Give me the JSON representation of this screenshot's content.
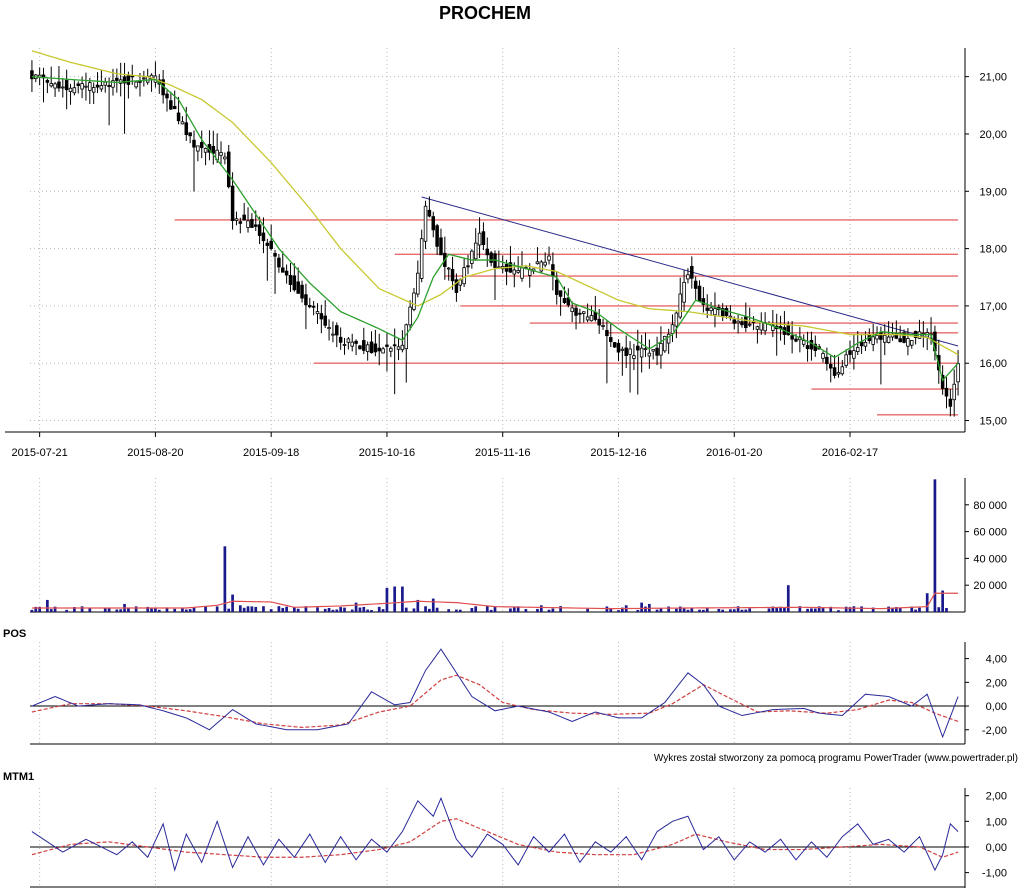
{
  "title": "PROCHEM",
  "footer": "Wykres został stworzony za pomocą programu PowerTrader (www.powertrader.pl)",
  "colors": {
    "grid": "#b9b9b9",
    "candle": "#000000",
    "sma_short": "#2ca02c",
    "sma_long": "#c8c830",
    "resistance": "#e86a6a",
    "trendline": "#2a2a8a",
    "volume": "#1a1a8c",
    "volume_avg": "#e05050",
    "indicator": "#2a2a9a",
    "signal": "#d04040"
  },
  "chart_data": [
    {
      "type": "candlestick",
      "name": "price",
      "title": "PROCHEM",
      "ylim": [
        14.8,
        21.5
      ],
      "yticks": [
        "21,00",
        "20,00",
        "19,00",
        "18,00",
        "17,00",
        "16,00",
        "15,00"
      ],
      "ytick_values": [
        21,
        20,
        19,
        18,
        17,
        16,
        15
      ],
      "xticks": [
        "2015-07-21",
        "2015-08-20",
        "2015-09-18",
        "2015-10-16",
        "2015-11-16",
        "2015-12-16",
        "2016-01-20",
        "2016-02-17"
      ],
      "xtick_index": [
        2,
        32,
        62,
        92,
        122,
        152,
        182,
        212
      ],
      "n_bars": 241,
      "anchors_close": [
        [
          0,
          21.0
        ],
        [
          10,
          20.8
        ],
        [
          22,
          20.9
        ],
        [
          32,
          21.0
        ],
        [
          36,
          20.5
        ],
        [
          42,
          19.8
        ],
        [
          50,
          19.6
        ],
        [
          52,
          18.5
        ],
        [
          58,
          18.4
        ],
        [
          66,
          17.5
        ],
        [
          72,
          17.0
        ],
        [
          80,
          16.4
        ],
        [
          90,
          16.2
        ],
        [
          96,
          16.3
        ],
        [
          100,
          17.6
        ],
        [
          102,
          18.7
        ],
        [
          106,
          17.9
        ],
        [
          110,
          17.3
        ],
        [
          116,
          18.2
        ],
        [
          120,
          17.7
        ],
        [
          126,
          17.6
        ],
        [
          134,
          17.8
        ],
        [
          136,
          17.2
        ],
        [
          140,
          16.9
        ],
        [
          146,
          16.8
        ],
        [
          152,
          16.2
        ],
        [
          162,
          16.2
        ],
        [
          166,
          16.7
        ],
        [
          170,
          17.6
        ],
        [
          174,
          17.0
        ],
        [
          178,
          16.9
        ],
        [
          184,
          16.7
        ],
        [
          194,
          16.6
        ],
        [
          204,
          16.2
        ],
        [
          208,
          15.8
        ],
        [
          212,
          16.2
        ],
        [
          218,
          16.5
        ],
        [
          226,
          16.4
        ],
        [
          233,
          16.55
        ],
        [
          236,
          15.5
        ],
        [
          238,
          15.3
        ],
        [
          240,
          16.0
        ]
      ],
      "sma_short_anchors": [
        [
          0,
          21.0
        ],
        [
          10,
          20.95
        ],
        [
          22,
          20.9
        ],
        [
          32,
          20.95
        ],
        [
          38,
          20.6
        ],
        [
          44,
          19.9
        ],
        [
          52,
          19.2
        ],
        [
          58,
          18.6
        ],
        [
          64,
          18.0
        ],
        [
          72,
          17.4
        ],
        [
          80,
          16.9
        ],
        [
          90,
          16.6
        ],
        [
          96,
          16.4
        ],
        [
          100,
          16.8
        ],
        [
          104,
          17.5
        ],
        [
          108,
          17.9
        ],
        [
          114,
          17.8
        ],
        [
          120,
          17.8
        ],
        [
          128,
          17.65
        ],
        [
          136,
          17.5
        ],
        [
          140,
          17.05
        ],
        [
          146,
          16.9
        ],
        [
          152,
          16.6
        ],
        [
          160,
          16.25
        ],
        [
          166,
          16.5
        ],
        [
          172,
          17.1
        ],
        [
          178,
          16.95
        ],
        [
          186,
          16.8
        ],
        [
          194,
          16.6
        ],
        [
          202,
          16.35
        ],
        [
          208,
          16.1
        ],
        [
          214,
          16.35
        ],
        [
          220,
          16.55
        ],
        [
          228,
          16.5
        ],
        [
          233,
          16.5
        ],
        [
          236,
          15.7
        ],
        [
          240,
          16.0
        ]
      ],
      "sma_long_anchors": [
        [
          0,
          21.45
        ],
        [
          10,
          21.25
        ],
        [
          22,
          21.05
        ],
        [
          30,
          21.0
        ],
        [
          36,
          20.85
        ],
        [
          44,
          20.6
        ],
        [
          52,
          20.2
        ],
        [
          62,
          19.5
        ],
        [
          72,
          18.7
        ],
        [
          80,
          18.0
        ],
        [
          90,
          17.3
        ],
        [
          100,
          17.0
        ],
        [
          106,
          17.2
        ],
        [
          112,
          17.5
        ],
        [
          120,
          17.65
        ],
        [
          128,
          17.7
        ],
        [
          136,
          17.6
        ],
        [
          144,
          17.35
        ],
        [
          152,
          17.1
        ],
        [
          160,
          16.95
        ],
        [
          170,
          16.9
        ],
        [
          180,
          16.8
        ],
        [
          190,
          16.7
        ],
        [
          200,
          16.65
        ],
        [
          212,
          16.5
        ],
        [
          224,
          16.5
        ],
        [
          232,
          16.45
        ],
        [
          236,
          16.3
        ],
        [
          240,
          16.15
        ]
      ],
      "resistance_levels": [
        {
          "value": 18.5,
          "from": 37,
          "to": 240
        },
        {
          "value": 17.9,
          "from": 94,
          "to": 240
        },
        {
          "value": 17.52,
          "from": 107,
          "to": 240
        },
        {
          "value": 17.0,
          "from": 111,
          "to": 240
        },
        {
          "value": 16.7,
          "from": 129,
          "to": 240
        },
        {
          "value": 16.53,
          "from": 149,
          "to": 240
        },
        {
          "value": 16.0,
          "from": 73,
          "to": 240
        },
        {
          "value": 15.55,
          "from": 202,
          "to": 240
        },
        {
          "value": 15.1,
          "from": 219,
          "to": 240
        }
      ],
      "trendline": {
        "from": [
          101,
          18.9
        ],
        "to": [
          240,
          16.3
        ]
      }
    },
    {
      "type": "bar",
      "name": "volume",
      "ylim": [
        0,
        100000
      ],
      "yticks": [
        "80 000",
        "60 000",
        "40 000",
        "20 000"
      ],
      "ytick_values": [
        80000,
        60000,
        40000,
        20000
      ],
      "n_bars": 241,
      "spikes": [
        [
          4,
          9000
        ],
        [
          24,
          6000
        ],
        [
          50,
          49000
        ],
        [
          52,
          13000
        ],
        [
          54,
          5000
        ],
        [
          84,
          7000
        ],
        [
          92,
          18000
        ],
        [
          94,
          19000
        ],
        [
          96,
          19000
        ],
        [
          100,
          9000
        ],
        [
          104,
          10000
        ],
        [
          132,
          5000
        ],
        [
          154,
          5000
        ],
        [
          158,
          7000
        ],
        [
          160,
          6000
        ],
        [
          196,
          20000
        ],
        [
          232,
          14000
        ],
        [
          234,
          99000
        ],
        [
          236,
          16000
        ]
      ],
      "base_volume": 2200,
      "avg_anchors": [
        [
          0,
          3000
        ],
        [
          40,
          3000
        ],
        [
          48,
          5000
        ],
        [
          52,
          8000
        ],
        [
          62,
          7500
        ],
        [
          68,
          3500
        ],
        [
          80,
          4500
        ],
        [
          92,
          6500
        ],
        [
          100,
          8000
        ],
        [
          110,
          7000
        ],
        [
          120,
          4000
        ],
        [
          150,
          2500
        ],
        [
          170,
          3000
        ],
        [
          200,
          3500
        ],
        [
          220,
          2500
        ],
        [
          232,
          4000
        ],
        [
          234,
          14000
        ],
        [
          240,
          14000
        ]
      ]
    },
    {
      "type": "line",
      "name": "POS",
      "ylabel": "POS",
      "ylim": [
        -3.2,
        5.4
      ],
      "yticks": [
        "4,00",
        "2,00",
        "0,00",
        "-2,00"
      ],
      "ytick_values": [
        4,
        2,
        0,
        -2
      ],
      "n_bars": 241,
      "series_anchors": [
        [
          0,
          0.0
        ],
        [
          6,
          0.8
        ],
        [
          12,
          0.0
        ],
        [
          20,
          0.2
        ],
        [
          28,
          0.1
        ],
        [
          34,
          -0.4
        ],
        [
          40,
          -1.0
        ],
        [
          46,
          -2.0
        ],
        [
          52,
          -0.3
        ],
        [
          58,
          -1.5
        ],
        [
          66,
          -2.0
        ],
        [
          74,
          -2.0
        ],
        [
          82,
          -1.5
        ],
        [
          88,
          1.2
        ],
        [
          94,
          0.1
        ],
        [
          98,
          0.3
        ],
        [
          102,
          3.0
        ],
        [
          106,
          4.8
        ],
        [
          110,
          2.8
        ],
        [
          114,
          0.8
        ],
        [
          120,
          -0.4
        ],
        [
          126,
          0.0
        ],
        [
          134,
          -0.5
        ],
        [
          140,
          -1.3
        ],
        [
          146,
          -0.5
        ],
        [
          152,
          -1.0
        ],
        [
          158,
          -1.0
        ],
        [
          164,
          0.3
        ],
        [
          170,
          2.8
        ],
        [
          174,
          1.8
        ],
        [
          178,
          0.0
        ],
        [
          184,
          -0.8
        ],
        [
          192,
          -0.3
        ],
        [
          200,
          -0.2
        ],
        [
          204,
          -0.6
        ],
        [
          210,
          -0.8
        ],
        [
          216,
          1.0
        ],
        [
          222,
          0.8
        ],
        [
          228,
          0.0
        ],
        [
          232,
          1.0
        ],
        [
          236,
          -2.6
        ],
        [
          240,
          0.8
        ]
      ],
      "signal_anchors": [
        [
          0,
          -0.5
        ],
        [
          10,
          0.2
        ],
        [
          20,
          0.2
        ],
        [
          30,
          0.0
        ],
        [
          40,
          -0.4
        ],
        [
          50,
          -0.9
        ],
        [
          60,
          -1.5
        ],
        [
          70,
          -1.8
        ],
        [
          80,
          -1.6
        ],
        [
          90,
          -0.5
        ],
        [
          98,
          0.0
        ],
        [
          106,
          2.2
        ],
        [
          110,
          2.6
        ],
        [
          116,
          1.8
        ],
        [
          122,
          0.3
        ],
        [
          130,
          -0.3
        ],
        [
          140,
          -0.6
        ],
        [
          150,
          -0.7
        ],
        [
          160,
          -0.6
        ],
        [
          166,
          0.2
        ],
        [
          174,
          1.8
        ],
        [
          180,
          0.8
        ],
        [
          188,
          -0.5
        ],
        [
          196,
          -0.4
        ],
        [
          206,
          -0.6
        ],
        [
          214,
          -0.3
        ],
        [
          222,
          0.5
        ],
        [
          228,
          0.3
        ],
        [
          234,
          -0.6
        ],
        [
          240,
          -1.3
        ]
      ]
    },
    {
      "type": "line",
      "name": "MTM1",
      "ylabel": "MTM1",
      "ylim": [
        -1.6,
        2.3
      ],
      "yticks": [
        "2,00",
        "1,00",
        "0,00",
        "-1,00"
      ],
      "ytick_values": [
        2,
        1,
        0,
        -1
      ],
      "n_bars": 241,
      "series_anchors": [
        [
          0,
          0.6
        ],
        [
          2,
          0.4
        ],
        [
          4,
          0.2
        ],
        [
          8,
          -0.2
        ],
        [
          14,
          0.3
        ],
        [
          18,
          0.0
        ],
        [
          22,
          -0.3
        ],
        [
          26,
          0.2
        ],
        [
          30,
          -0.4
        ],
        [
          34,
          0.9
        ],
        [
          37,
          -0.9
        ],
        [
          40,
          0.5
        ],
        [
          44,
          -0.6
        ],
        [
          48,
          1.0
        ],
        [
          52,
          -0.8
        ],
        [
          56,
          0.4
        ],
        [
          60,
          -0.7
        ],
        [
          64,
          0.3
        ],
        [
          68,
          -0.4
        ],
        [
          72,
          0.5
        ],
        [
          76,
          -0.6
        ],
        [
          80,
          0.4
        ],
        [
          84,
          -0.5
        ],
        [
          88,
          0.3
        ],
        [
          92,
          -0.2
        ],
        [
          96,
          0.6
        ],
        [
          100,
          1.8
        ],
        [
          104,
          1.2
        ],
        [
          106,
          1.9
        ],
        [
          110,
          0.3
        ],
        [
          114,
          -0.4
        ],
        [
          118,
          0.5
        ],
        [
          122,
          0.1
        ],
        [
          126,
          -0.7
        ],
        [
          130,
          0.4
        ],
        [
          134,
          -0.2
        ],
        [
          138,
          0.5
        ],
        [
          142,
          -0.6
        ],
        [
          146,
          0.2
        ],
        [
          150,
          -0.2
        ],
        [
          154,
          0.4
        ],
        [
          158,
          -0.5
        ],
        [
          162,
          0.6
        ],
        [
          166,
          1.0
        ],
        [
          170,
          1.2
        ],
        [
          174,
          -0.1
        ],
        [
          178,
          0.4
        ],
        [
          182,
          -0.5
        ],
        [
          186,
          0.2
        ],
        [
          190,
          -0.2
        ],
        [
          194,
          0.3
        ],
        [
          198,
          -0.5
        ],
        [
          202,
          0.2
        ],
        [
          206,
          -0.4
        ],
        [
          210,
          0.4
        ],
        [
          214,
          0.9
        ],
        [
          218,
          0.1
        ],
        [
          222,
          0.3
        ],
        [
          226,
          -0.2
        ],
        [
          230,
          0.4
        ],
        [
          234,
          -0.9
        ],
        [
          236,
          -0.3
        ],
        [
          238,
          0.9
        ],
        [
          240,
          0.6
        ]
      ],
      "signal_anchors": [
        [
          0,
          -0.3
        ],
        [
          10,
          0.1
        ],
        [
          20,
          0.2
        ],
        [
          30,
          0.0
        ],
        [
          40,
          -0.2
        ],
        [
          50,
          -0.3
        ],
        [
          60,
          -0.4
        ],
        [
          70,
          -0.4
        ],
        [
          80,
          -0.3
        ],
        [
          90,
          -0.1
        ],
        [
          98,
          0.2
        ],
        [
          106,
          1.0
        ],
        [
          110,
          1.1
        ],
        [
          118,
          0.6
        ],
        [
          126,
          0.1
        ],
        [
          136,
          -0.2
        ],
        [
          146,
          -0.3
        ],
        [
          156,
          -0.3
        ],
        [
          166,
          0.1
        ],
        [
          172,
          0.5
        ],
        [
          180,
          0.2
        ],
        [
          190,
          -0.1
        ],
        [
          200,
          -0.1
        ],
        [
          210,
          0.0
        ],
        [
          220,
          0.1
        ],
        [
          230,
          0.0
        ],
        [
          236,
          -0.4
        ],
        [
          240,
          -0.2
        ]
      ]
    }
  ]
}
